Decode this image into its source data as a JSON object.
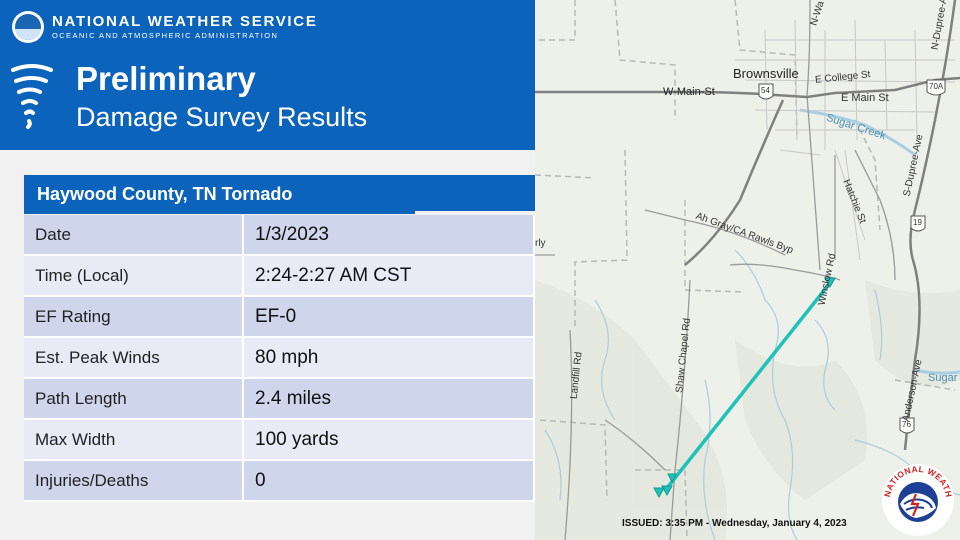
{
  "agency": {
    "name": "NATIONAL WEATHER SERVICE",
    "subtitle": "OCEANIC AND ATMOSPHERIC ADMINISTRATION",
    "seal_text": "NATIONAL WEATHER SERVICE"
  },
  "title": {
    "line1": "Preliminary",
    "line2": "Damage Survey Results"
  },
  "table": {
    "title": "Haywood County, TN Tornado",
    "rows": [
      {
        "label": "Date",
        "value": "1/3/2023"
      },
      {
        "label": "Time (Local)",
        "value": "2:24-2:27 AM CST"
      },
      {
        "label": "EF Rating",
        "value": "EF-0"
      },
      {
        "label": "Est. Peak Winds",
        "value": "80 mph"
      },
      {
        "label": "Path Length",
        "value": "2.4 miles"
      },
      {
        "label": "Max Width",
        "value": "100 yards"
      },
      {
        "label": "Injuries/Deaths",
        "value": "0"
      }
    ]
  },
  "map": {
    "town": "Brownsville",
    "roads": {
      "w_main": "W-Main-St",
      "e_college": "E College St",
      "e_main": "E Main St",
      "route54": "54",
      "route70a": "70A",
      "route19": "19",
      "route76": "76",
      "n_dupree": "N-Dupree-A",
      "s_dupree": "S-Dupree-Ave",
      "n_wa": "N-Wa",
      "hatchie": "Hatchie St",
      "rawls": "Ah Gray/CA Rawls Byp",
      "winslow": "Winslow Rd",
      "shaw_chapel": "Shaw Chapel Rd",
      "landfill": "Landfill Rd",
      "anderson": "Anderson-Ave",
      "sugar_creek": "Sugar Creek",
      "sugar2": "Sugar",
      "fragment": "rly"
    },
    "colors": {
      "track": "#1fc2b9",
      "water": "#a6cfe2",
      "road": "#909090",
      "highway": "#6e6e6e"
    }
  },
  "issued": "ISSUED: 3:35 PM - Wednesday, January 4, 2023"
}
